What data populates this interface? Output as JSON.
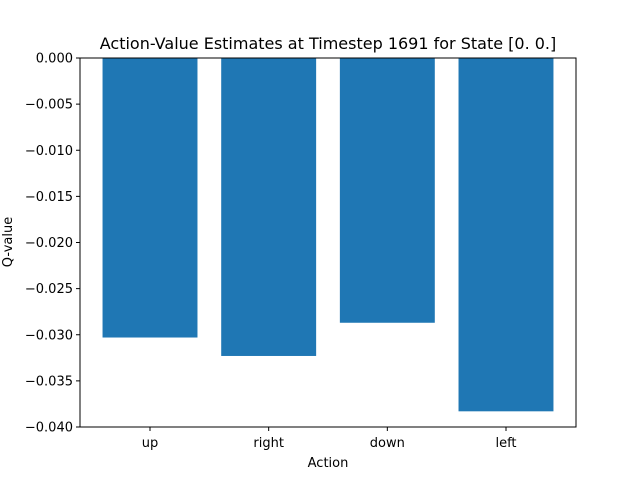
{
  "chart_data": {
    "type": "bar",
    "title": "Action-Value Estimates at Timestep 1691 for State [0. 0.]",
    "xlabel": "Action",
    "ylabel": "Q-value",
    "categories": [
      "up",
      "right",
      "down",
      "left"
    ],
    "values": [
      -0.0303,
      -0.0323,
      -0.0287,
      -0.0383
    ],
    "ylim": [
      -0.04,
      0.0
    ],
    "yticks": [
      0.0,
      -0.005,
      -0.01,
      -0.015,
      -0.02,
      -0.025,
      -0.03,
      -0.035,
      -0.04
    ],
    "ytick_labels": [
      "0.000",
      "−0.005",
      "−0.010",
      "−0.015",
      "−0.020",
      "−0.025",
      "−0.030",
      "−0.035",
      "−0.040"
    ],
    "bar_color": "#1f77b4",
    "grid": false,
    "legend": false
  }
}
